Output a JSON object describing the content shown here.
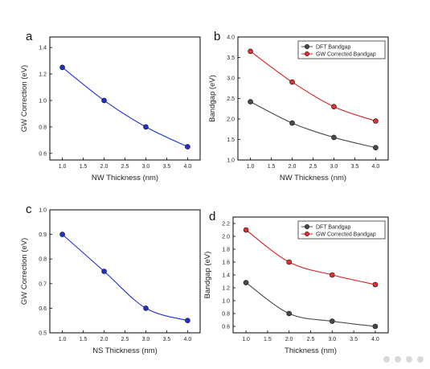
{
  "chart_data": [
    {
      "type": "line",
      "panel": "a",
      "x": [
        1.0,
        2.0,
        3.0,
        4.0
      ],
      "series": [
        {
          "values": [
            1.25,
            1.0,
            0.8,
            0.65
          ],
          "color": "#1f2fd6",
          "marker_color": "#1f2fd6"
        }
      ],
      "xlabel": "NW Thickness (nm)",
      "ylabel": "GW Correction (eV)",
      "xlim": [
        0.7,
        4.3
      ],
      "ylim": [
        0.55,
        1.48
      ],
      "xticks": [
        1.0,
        1.5,
        2.0,
        2.5,
        3.0,
        3.5,
        4.0
      ],
      "xtick_labels": [
        "1.0",
        "1.5",
        "2.0",
        "2.5",
        "3.0",
        "3.5",
        "4.0"
      ],
      "yticks": [
        0.6,
        0.8,
        1.0,
        1.2,
        1.4
      ],
      "ytick_labels": [
        "0.6",
        "0.8",
        "1.0",
        "1.2",
        "1.4"
      ],
      "legend": false
    },
    {
      "type": "line",
      "panel": "b",
      "x": [
        1.0,
        2.0,
        3.0,
        4.0
      ],
      "series": [
        {
          "name": "DFT Bandgap",
          "values": [
            2.42,
            1.9,
            1.55,
            1.3
          ],
          "color": "#4a4a4a",
          "marker_color": "#4a4a4a"
        },
        {
          "name": "GW Corrected Bandgap",
          "values": [
            3.65,
            2.9,
            2.3,
            1.95
          ],
          "color": "#d62020",
          "marker_color": "#e03030"
        }
      ],
      "xlabel": "NW Thickness (nm)",
      "ylabel": "Bandgap (eV)",
      "xlim": [
        0.7,
        4.3
      ],
      "ylim": [
        1.0,
        4.0
      ],
      "xticks": [
        1.0,
        1.5,
        2.0,
        2.5,
        3.0,
        3.5,
        4.0
      ],
      "xtick_labels": [
        "1.0",
        "1.5",
        "2.0",
        "2.5",
        "3.0",
        "3.5",
        "4.0"
      ],
      "yticks": [
        1.0,
        1.5,
        2.0,
        2.5,
        3.0,
        3.5,
        4.0
      ],
      "ytick_labels": [
        "1.0",
        "1.5",
        "2.0",
        "2.5",
        "3.0",
        "3.5",
        "4.0"
      ],
      "legend": true,
      "legend_position": "top-right"
    },
    {
      "type": "line",
      "panel": "c",
      "x": [
        1.0,
        2.0,
        3.0,
        4.0
      ],
      "series": [
        {
          "values": [
            0.9,
            0.75,
            0.6,
            0.55
          ],
          "color": "#1f2fd6",
          "marker_color": "#1f2fd6"
        }
      ],
      "xlabel": "NS Thickness (nm)",
      "ylabel": "GW Correction (eV)",
      "xlim": [
        0.7,
        4.3
      ],
      "ylim": [
        0.5,
        1.0
      ],
      "xticks": [
        1.0,
        1.5,
        2.0,
        2.5,
        3.0,
        3.5,
        4.0
      ],
      "xtick_labels": [
        "1.0",
        "1.5",
        "2.0",
        "2.5",
        "3.0",
        "3.5",
        "4.0"
      ],
      "yticks": [
        0.5,
        0.6,
        0.7,
        0.8,
        0.9,
        1.0
      ],
      "ytick_labels": [
        "0.5",
        "0.6",
        "0.7",
        "0.8",
        "0.9",
        "1.0"
      ],
      "legend": false
    },
    {
      "type": "line",
      "panel": "d",
      "x": [
        1.0,
        2.0,
        3.0,
        4.0
      ],
      "series": [
        {
          "name": "DFT Bandgap",
          "values": [
            1.28,
            0.8,
            0.68,
            0.6
          ],
          "color": "#4a4a4a",
          "marker_color": "#4a4a4a"
        },
        {
          "name": "GW Corrected Bandgap",
          "values": [
            2.1,
            1.6,
            1.4,
            1.25
          ],
          "color": "#d62020",
          "marker_color": "#e03030"
        }
      ],
      "xlabel": "Thickness (nm)",
      "ylabel": "Bandgap (eV)",
      "xlim": [
        0.7,
        4.3
      ],
      "ylim": [
        0.5,
        2.3
      ],
      "xticks": [
        1.0,
        1.5,
        2.0,
        2.5,
        3.0,
        3.5,
        4.0
      ],
      "xtick_labels": [
        "1.0",
        "1.5",
        "2.0",
        "2.5",
        "3.0",
        "3.5",
        "4.0"
      ],
      "yticks": [
        0.6,
        0.8,
        1.0,
        1.2,
        1.4,
        1.6,
        1.8,
        2.0,
        2.2
      ],
      "ytick_labels": [
        "0.6",
        "0.8",
        "1.0",
        "1.2",
        "1.4",
        "1.6",
        "1.8",
        "2.0",
        "2.2"
      ],
      "legend": true,
      "legend_position": "top-right"
    }
  ]
}
